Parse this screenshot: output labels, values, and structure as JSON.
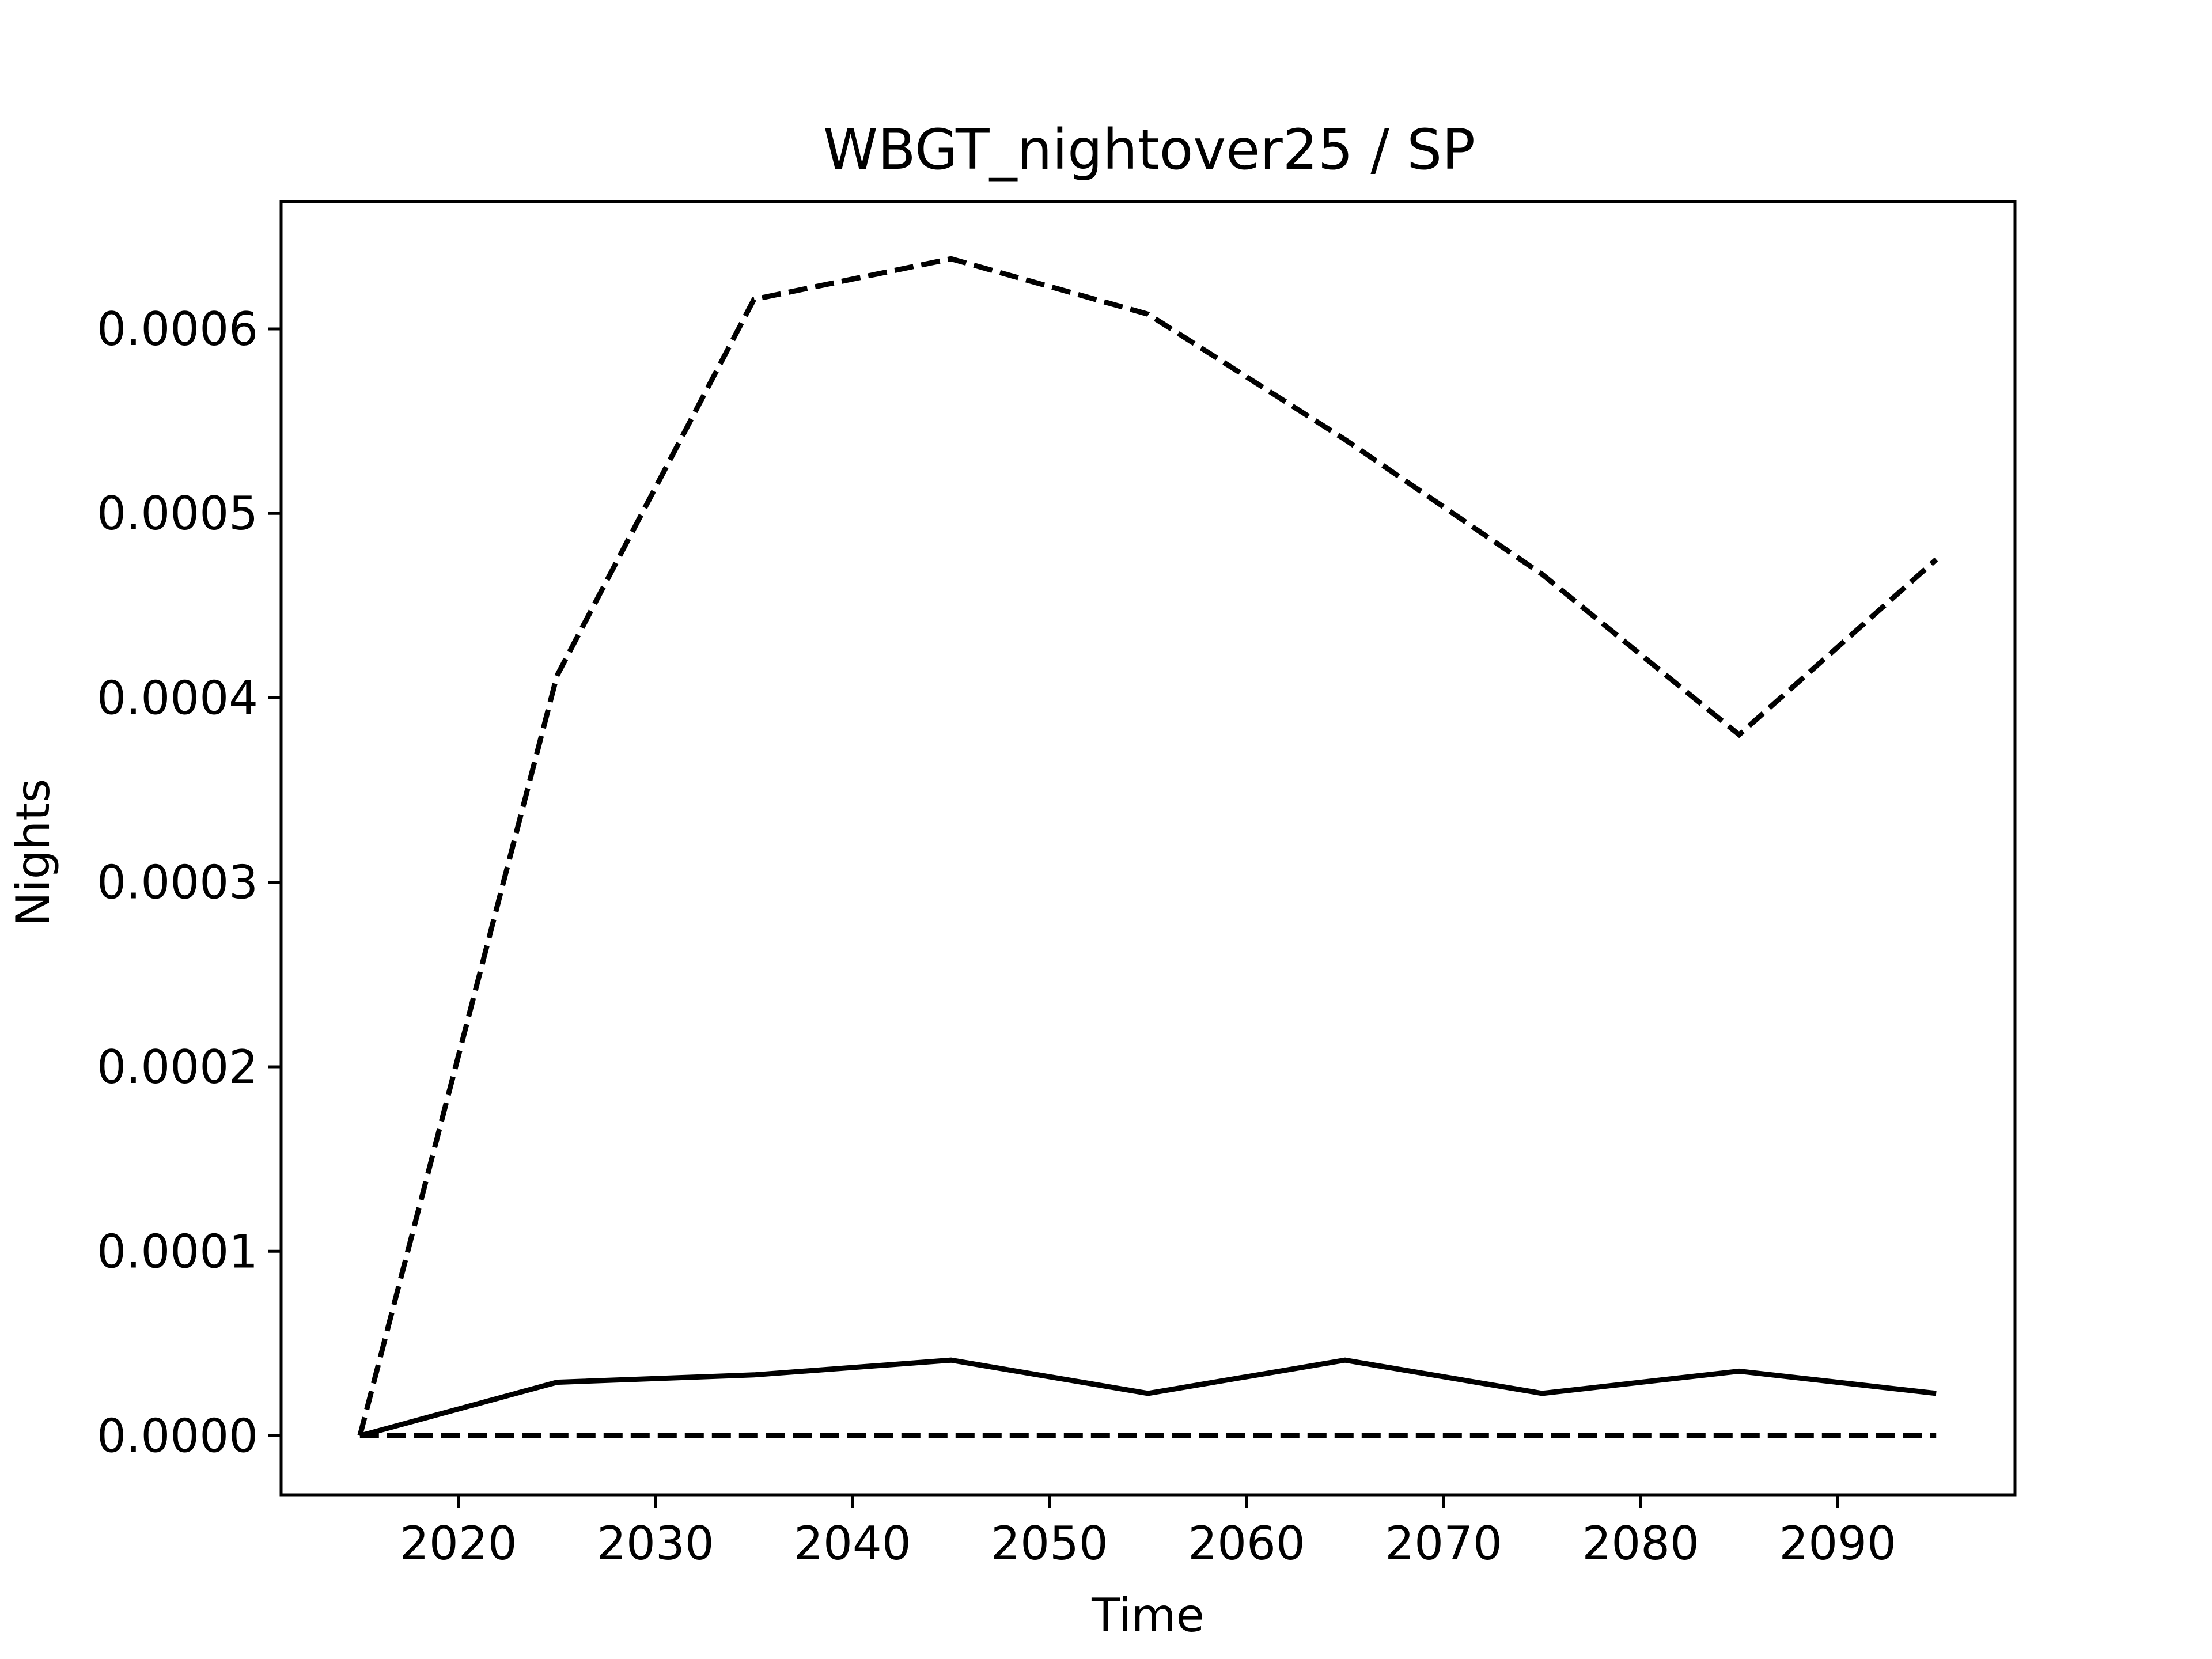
{
  "chart_data": {
    "type": "line",
    "title": "WBGT_nightover25 / SP",
    "xlabel": "Time",
    "ylabel": "Nights",
    "xlim": [
      2011,
      2099
    ],
    "ylim": [
      -3.2e-05,
      0.000669
    ],
    "xticks": [
      2020,
      2030,
      2040,
      2050,
      2060,
      2070,
      2080,
      2090
    ],
    "xtick_labels": [
      "2020",
      "2030",
      "2040",
      "2050",
      "2060",
      "2070",
      "2080",
      "2090"
    ],
    "yticks": [
      0,
      0.0001,
      0.0002,
      0.0003,
      0.0004,
      0.0005,
      0.0006
    ],
    "ytick_labels": [
      "0.0000",
      "0.0001",
      "0.0002",
      "0.0003",
      "0.0004",
      "0.0005",
      "0.0006"
    ],
    "grid": false,
    "x": [
      2015,
      2025,
      2035,
      2045,
      2055,
      2065,
      2075,
      2085,
      2095
    ],
    "series": [
      {
        "style": "solid",
        "color": "#000000",
        "values": [
          0,
          2.9e-05,
          3.3e-05,
          4.1e-05,
          2.3e-05,
          4.1e-05,
          2.3e-05,
          3.5e-05,
          2.3e-05
        ]
      },
      {
        "style": "dashed",
        "color": "#000000",
        "values": [
          0,
          0.000412,
          0.000616,
          0.000638,
          0.000608,
          0.00054,
          0.000467,
          0.00038,
          0.000475
        ]
      },
      {
        "style": "dashed",
        "color": "#000000",
        "values": [
          0,
          0,
          0,
          0,
          0,
          0,
          0,
          0,
          0
        ]
      }
    ]
  }
}
